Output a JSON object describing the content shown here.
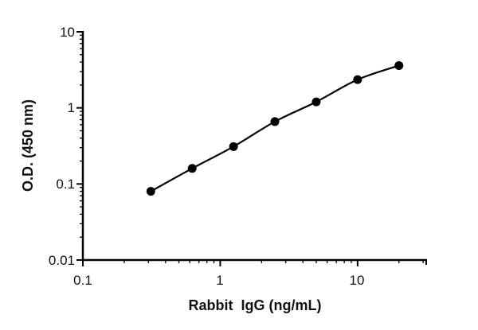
{
  "chart_data": {
    "type": "line",
    "title": "",
    "xlabel": "Rabbit  IgG (ng/mL)",
    "ylabel": "O.D. (450 nm)",
    "xscale": "log",
    "yscale": "log",
    "xlim": [
      0.1,
      31.6
    ],
    "ylim": [
      0.01,
      10
    ],
    "x_ticks": [
      0.1,
      1,
      10
    ],
    "x_tick_labels": [
      "0.1",
      "1",
      "10"
    ],
    "y_ticks": [
      0.01,
      0.1,
      1,
      10
    ],
    "y_tick_labels": [
      "0.01",
      "0.1",
      "1",
      "10"
    ],
    "grid": false,
    "series": [
      {
        "x": [
          0.3125,
          0.625,
          1.25,
          2.5,
          5,
          10,
          20
        ],
        "y": [
          0.08,
          0.16,
          0.31,
          0.66,
          1.2,
          2.35,
          3.6
        ],
        "color": "#000000",
        "marker": "circle",
        "line": "fitted curve"
      }
    ]
  }
}
